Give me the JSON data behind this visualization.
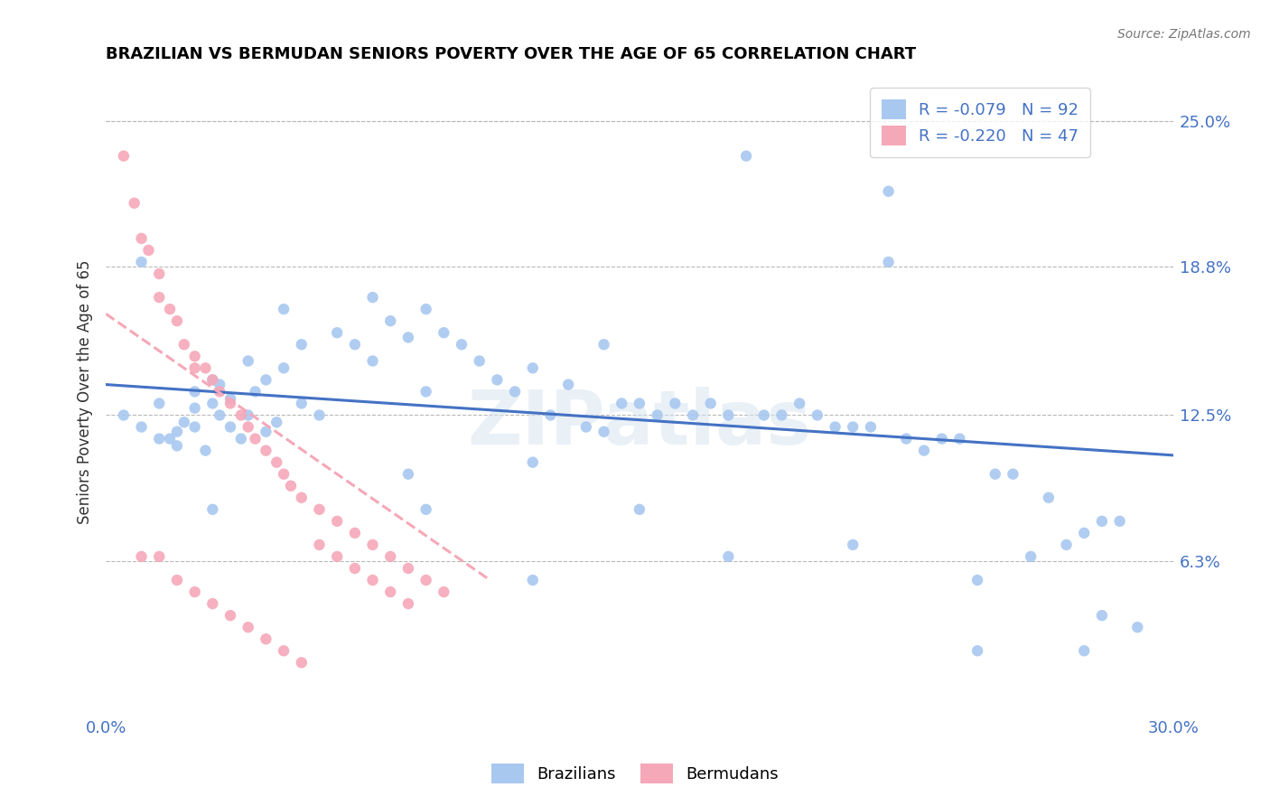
{
  "title": "BRAZILIAN VS BERMUDAN SENIORS POVERTY OVER THE AGE OF 65 CORRELATION CHART",
  "source": "Source: ZipAtlas.com",
  "ylabel": "Seniors Poverty Over the Age of 65",
  "ytick_labels": [
    "25.0%",
    "18.8%",
    "12.5%",
    "6.3%"
  ],
  "ytick_values": [
    0.25,
    0.188,
    0.125,
    0.063
  ],
  "xlim": [
    0.0,
    0.3
  ],
  "ylim": [
    0.0,
    0.27
  ],
  "watermark_text": "ZIPatlas",
  "blue_scatter_color": "#a8c8f0",
  "pink_scatter_color": "#f5a8b8",
  "blue_line_color": "#4472c4",
  "pink_line_color": "#f5a8b8",
  "bg_color": "#ffffff",
  "grid_color": "#b8b8b8",
  "text_color": "#4472c4",
  "title_color": "#000000",
  "legend_r1": "R = -0.079   N = 92",
  "legend_r2": "R = -0.220   N = 47",
  "bottom_legend1": "Brazilians",
  "bottom_legend2": "Bermudans",
  "blue_x": [
    0.005,
    0.01,
    0.015,
    0.015,
    0.018,
    0.02,
    0.02,
    0.022,
    0.025,
    0.025,
    0.025,
    0.028,
    0.03,
    0.03,
    0.032,
    0.032,
    0.035,
    0.035,
    0.038,
    0.04,
    0.04,
    0.042,
    0.045,
    0.045,
    0.048,
    0.05,
    0.055,
    0.055,
    0.06,
    0.065,
    0.07,
    0.075,
    0.075,
    0.08,
    0.085,
    0.09,
    0.09,
    0.095,
    0.1,
    0.105,
    0.11,
    0.115,
    0.12,
    0.125,
    0.13,
    0.135,
    0.14,
    0.14,
    0.145,
    0.15,
    0.155,
    0.16,
    0.165,
    0.17,
    0.175,
    0.18,
    0.185,
    0.19,
    0.195,
    0.2,
    0.205,
    0.21,
    0.215,
    0.22,
    0.225,
    0.23,
    0.235,
    0.24,
    0.245,
    0.25,
    0.255,
    0.26,
    0.265,
    0.27,
    0.275,
    0.28,
    0.28,
    0.285,
    0.29,
    0.03,
    0.09,
    0.15,
    0.22,
    0.085,
    0.12,
    0.175,
    0.21,
    0.245,
    0.275,
    0.01,
    0.05,
    0.12
  ],
  "blue_y": [
    0.125,
    0.12,
    0.13,
    0.115,
    0.115,
    0.118,
    0.112,
    0.122,
    0.135,
    0.128,
    0.12,
    0.11,
    0.14,
    0.13,
    0.138,
    0.125,
    0.132,
    0.12,
    0.115,
    0.148,
    0.125,
    0.135,
    0.14,
    0.118,
    0.122,
    0.145,
    0.155,
    0.13,
    0.125,
    0.16,
    0.155,
    0.175,
    0.148,
    0.165,
    0.158,
    0.17,
    0.135,
    0.16,
    0.155,
    0.148,
    0.14,
    0.135,
    0.145,
    0.125,
    0.138,
    0.12,
    0.155,
    0.118,
    0.13,
    0.13,
    0.125,
    0.13,
    0.125,
    0.13,
    0.125,
    0.235,
    0.125,
    0.125,
    0.13,
    0.125,
    0.12,
    0.12,
    0.12,
    0.22,
    0.115,
    0.11,
    0.115,
    0.115,
    0.055,
    0.1,
    0.1,
    0.065,
    0.09,
    0.07,
    0.075,
    0.08,
    0.04,
    0.08,
    0.035,
    0.085,
    0.085,
    0.085,
    0.19,
    0.1,
    0.105,
    0.065,
    0.07,
    0.025,
    0.025,
    0.19,
    0.17,
    0.055
  ],
  "pink_x": [
    0.005,
    0.008,
    0.01,
    0.012,
    0.015,
    0.015,
    0.018,
    0.02,
    0.022,
    0.025,
    0.025,
    0.028,
    0.03,
    0.032,
    0.035,
    0.038,
    0.04,
    0.042,
    0.045,
    0.048,
    0.05,
    0.052,
    0.055,
    0.06,
    0.065,
    0.07,
    0.075,
    0.08,
    0.085,
    0.09,
    0.095,
    0.01,
    0.015,
    0.02,
    0.025,
    0.03,
    0.035,
    0.04,
    0.045,
    0.05,
    0.055,
    0.06,
    0.065,
    0.07,
    0.075,
    0.08,
    0.085
  ],
  "pink_y": [
    0.235,
    0.215,
    0.2,
    0.195,
    0.185,
    0.175,
    0.17,
    0.165,
    0.155,
    0.15,
    0.145,
    0.145,
    0.14,
    0.135,
    0.13,
    0.125,
    0.12,
    0.115,
    0.11,
    0.105,
    0.1,
    0.095,
    0.09,
    0.085,
    0.08,
    0.075,
    0.07,
    0.065,
    0.06,
    0.055,
    0.05,
    0.065,
    0.065,
    0.055,
    0.05,
    0.045,
    0.04,
    0.035,
    0.03,
    0.025,
    0.02,
    0.07,
    0.065,
    0.06,
    0.055,
    0.05,
    0.045
  ],
  "blue_line_x": [
    0.0,
    0.3
  ],
  "blue_line_y": [
    0.138,
    0.108
  ],
  "pink_line_x": [
    0.0,
    0.108
  ],
  "pink_line_y": [
    0.168,
    0.055
  ]
}
